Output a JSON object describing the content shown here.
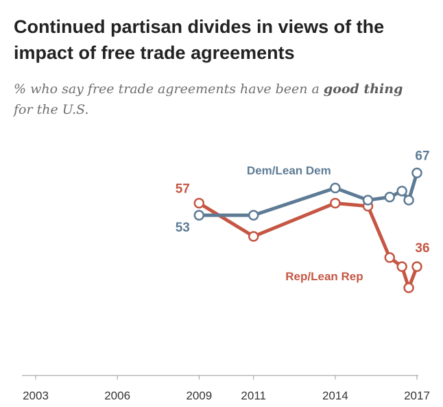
{
  "title": "Continued partisan divides in views of the impact of free trade agreements",
  "subtitle": {
    "prefix": "% who say free trade agreements have been a ",
    "emphasis": "good thing",
    "suffix": " for the U.S."
  },
  "chart_data": {
    "type": "line",
    "title": "Continued partisan divides in views of the impact of free trade agreements",
    "subtitle": "% who say free trade agreements have been a good thing for the U.S.",
    "xlabel": "",
    "ylabel": "",
    "x_ticks": [
      "2003",
      "2006",
      "2009",
      "2011",
      "2014",
      "2017"
    ],
    "xlim": [
      2003.0,
      2017.0
    ],
    "ylim": [
      0,
      80
    ],
    "grid": false,
    "legend": "inline labels",
    "series": [
      {
        "name": "Dem/Lean Dem",
        "color": "#5d7b95",
        "x": [
          2009.0,
          2011.0,
          2014.0,
          2015.2,
          2016.0,
          2016.45,
          2016.7,
          2017.0
        ],
        "values": [
          53,
          53,
          62,
          58,
          59,
          61,
          58,
          67
        ],
        "labels": {
          "first": "53",
          "last": "67"
        }
      },
      {
        "name": "Rep/Lean Rep",
        "color": "#c55643",
        "x": [
          2009.0,
          2011.0,
          2014.0,
          2015.2,
          2016.0,
          2016.45,
          2016.7,
          2017.0
        ],
        "values": [
          57,
          46,
          57,
          56,
          39,
          36,
          29,
          36
        ],
        "labels": {
          "first": "57",
          "last": "36"
        }
      }
    ]
  }
}
